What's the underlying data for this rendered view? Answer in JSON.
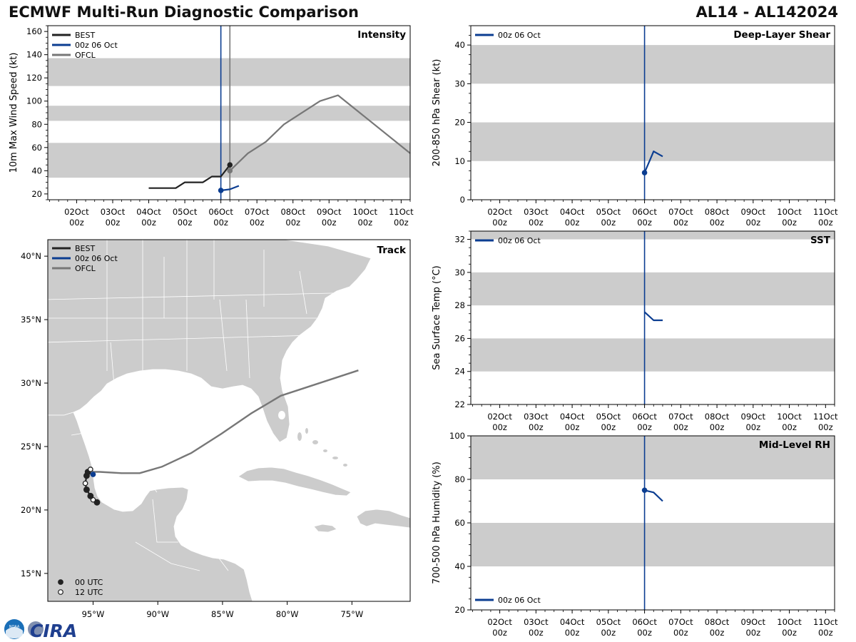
{
  "header": {
    "title": "ECMWF Multi-Run Diagnostic Comparison",
    "storm_id": "AL14 - AL142024"
  },
  "colors": {
    "best": "#222222",
    "run": "#0b3d91",
    "ofcl": "#777777",
    "band": "#cccccc",
    "land": "#cccccc"
  },
  "time_axis": {
    "labels": [
      {
        "t": 1,
        "top": "02Oct",
        "bottom": "00z"
      },
      {
        "t": 2,
        "top": "03Oct",
        "bottom": "00z"
      },
      {
        "t": 3,
        "top": "04Oct",
        "bottom": "00z"
      },
      {
        "t": 4,
        "top": "05Oct",
        "bottom": "00z"
      },
      {
        "t": 5,
        "top": "06Oct",
        "bottom": "00z"
      },
      {
        "t": 6,
        "top": "07Oct",
        "bottom": "00z"
      },
      {
        "t": 7,
        "top": "08Oct",
        "bottom": "00z"
      },
      {
        "t": 8,
        "top": "09Oct",
        "bottom": "00z"
      },
      {
        "t": 9,
        "top": "10Oct",
        "bottom": "00z"
      },
      {
        "t": 10,
        "top": "11Oct",
        "bottom": "00z"
      }
    ]
  },
  "chart_data": [
    {
      "id": "intensity",
      "type": "line",
      "title": "Intensity",
      "ylabel": "10m Max Wind Speed (kt)",
      "xlim": [
        0.2,
        10.25
      ],
      "ylim": [
        15,
        165
      ],
      "yticks": [
        20,
        40,
        60,
        80,
        100,
        120,
        140,
        160
      ],
      "bands": [
        [
          34,
          64
        ],
        [
          83,
          96
        ],
        [
          113,
          137
        ]
      ],
      "vlines": [
        {
          "t": 5.0,
          "series": "run"
        },
        {
          "t": 5.25,
          "series": "ofcl"
        }
      ],
      "legend": [
        {
          "label": "BEST",
          "series": "best"
        },
        {
          "label": "00z 06 Oct",
          "series": "run"
        },
        {
          "label": "OFCL",
          "series": "ofcl"
        }
      ],
      "series": [
        {
          "name": "BEST",
          "key": "best",
          "x": [
            3.0,
            3.75,
            4.0,
            4.5,
            4.75,
            5.0,
            5.25
          ],
          "y": [
            25,
            25,
            30,
            30,
            35,
            35,
            45
          ],
          "end_marker": true
        },
        {
          "name": "00z 06 Oct",
          "key": "run",
          "x": [
            5.0,
            5.25,
            5.5
          ],
          "y": [
            23,
            24,
            27
          ],
          "start_marker": true
        },
        {
          "name": "OFCL",
          "key": "ofcl",
          "x": [
            5.25,
            5.75,
            6.25,
            6.75,
            7.75,
            8.25,
            10.25
          ],
          "y": [
            40,
            55,
            65,
            80,
            100,
            105,
            55
          ],
          "start_marker": true
        }
      ]
    },
    {
      "id": "shear",
      "type": "line",
      "title": "Deep-Layer Shear",
      "ylabel": "200-850 hPa Shear (kt)",
      "xlim": [
        0.2,
        10.25
      ],
      "ylim": [
        0,
        45
      ],
      "yticks": [
        0,
        10,
        20,
        30,
        40
      ],
      "bands": [
        [
          10,
          20
        ],
        [
          30,
          40
        ]
      ],
      "vlines": [
        {
          "t": 5.0,
          "series": "run"
        }
      ],
      "legend": [
        {
          "label": "00z 06 Oct",
          "series": "run"
        }
      ],
      "series": [
        {
          "name": "00z 06 Oct",
          "key": "run",
          "x": [
            5.0,
            5.25,
            5.5
          ],
          "y": [
            7,
            12.5,
            11.2
          ],
          "start_marker": true
        }
      ]
    },
    {
      "id": "sst",
      "type": "line",
      "title": "SST",
      "ylabel": "Sea Surface Temp (°C)",
      "xlim": [
        0.2,
        10.25
      ],
      "ylim": [
        22,
        32.5
      ],
      "yticks": [
        22,
        24,
        26,
        28,
        30,
        32
      ],
      "bands": [
        [
          24,
          26
        ],
        [
          28,
          30
        ],
        [
          32,
          32.5
        ]
      ],
      "vlines": [
        {
          "t": 5.0,
          "series": "run"
        }
      ],
      "legend": [
        {
          "label": "00z 06 Oct",
          "series": "run"
        }
      ],
      "series": [
        {
          "name": "00z 06 Oct",
          "key": "run",
          "x": [
            5.0,
            5.25,
            5.5
          ],
          "y": [
            27.6,
            27.1,
            27.1
          ],
          "start_marker": false
        }
      ]
    },
    {
      "id": "rh",
      "type": "line",
      "title": "Mid-Level RH",
      "ylabel": "700-500 hPa Humidity (%)",
      "xlim": [
        0.2,
        10.25
      ],
      "ylim": [
        20,
        100
      ],
      "yticks": [
        20,
        40,
        60,
        80,
        100
      ],
      "bands": [
        [
          40,
          60
        ],
        [
          80,
          100
        ]
      ],
      "vlines": [
        {
          "t": 5.0,
          "series": "run"
        }
      ],
      "legend": [
        {
          "label": "00z 06 Oct",
          "series": "run"
        }
      ],
      "series": [
        {
          "name": "00z 06 Oct",
          "key": "run",
          "x": [
            5.0,
            5.25,
            5.5
          ],
          "y": [
            75,
            74,
            70
          ],
          "start_marker": true
        }
      ]
    }
  ],
  "track": {
    "title": "Track",
    "lon_range": [
      -98.5,
      -70.5
    ],
    "lat_range": [
      12.8,
      41.3
    ],
    "lon_ticks": [
      {
        "v": -95,
        "label": "95°W"
      },
      {
        "v": -90,
        "label": "90°W"
      },
      {
        "v": -85,
        "label": "85°W"
      },
      {
        "v": -80,
        "label": "80°W"
      },
      {
        "v": -75,
        "label": "75°W"
      }
    ],
    "lat_ticks": [
      {
        "v": 15,
        "label": "15°N"
      },
      {
        "v": 20,
        "label": "20°N"
      },
      {
        "v": 25,
        "label": "25°N"
      },
      {
        "v": 30,
        "label": "30°N"
      },
      {
        "v": 35,
        "label": "35°N"
      },
      {
        "v": 40,
        "label": "40°N"
      }
    ],
    "legend": [
      {
        "label": "BEST",
        "series": "best"
      },
      {
        "label": "00z 06 Oct",
        "series": "run"
      },
      {
        "label": "OFCL",
        "series": "ofcl"
      }
    ],
    "marker_legend": [
      {
        "label": "00 UTC",
        "filled": true
      },
      {
        "label": "12 UTC",
        "filled": false
      }
    ],
    "best": {
      "lon": [
        -94.7,
        -95.0,
        -95.2,
        -95.5,
        -95.6,
        -95.5,
        -95.4,
        -95.2
      ],
      "lat": [
        20.6,
        20.8,
        21.1,
        21.6,
        22.1,
        22.7,
        23.0,
        23.2
      ],
      "utc12": [
        false,
        true,
        false,
        false,
        true,
        false,
        false,
        true
      ]
    },
    "run": {
      "lon": [
        -95.0,
        -94.9
      ],
      "lat": [
        22.8,
        22.9
      ]
    },
    "ofcl": {
      "lon": [
        -95.2,
        -94.5,
        -92.8,
        -91.4,
        -89.7,
        -87.4,
        -85.1,
        -82.8,
        -80.5,
        -74.5
      ],
      "lat": [
        23.0,
        23.0,
        22.9,
        22.9,
        23.4,
        24.5,
        26.0,
        27.6,
        29.0,
        31.0
      ]
    }
  },
  "logo": {
    "agency": "NOAA",
    "text": "CIRA"
  }
}
